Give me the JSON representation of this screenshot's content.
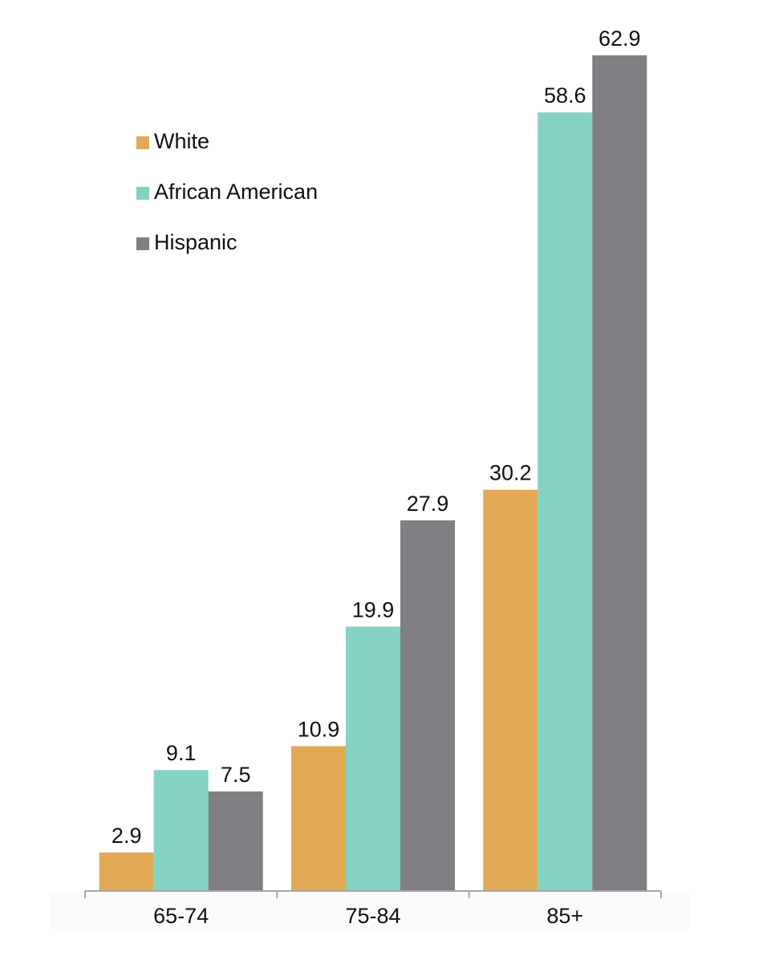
{
  "chart_data": {
    "type": "bar",
    "title": "",
    "xlabel": "",
    "ylabel": "",
    "categories": [
      "65-74",
      "75-84",
      "85+"
    ],
    "series": [
      {
        "name": "White",
        "values": [
          2.9,
          10.9,
          30.2
        ],
        "color": "#E2A955"
      },
      {
        "name": "African American",
        "values": [
          9.1,
          19.9,
          58.6
        ],
        "color": "#84D2C3"
      },
      {
        "name": "Hispanic",
        "values": [
          7.5,
          27.9,
          62.9
        ],
        "color": "#7F7F84"
      }
    ],
    "value_labels": [
      [
        "2.9",
        "10.9",
        "30.2"
      ],
      [
        "9.1",
        "19.9",
        "58.6"
      ],
      [
        "7.5",
        "27.9",
        "62.9"
      ]
    ],
    "ylim": [
      0,
      62.9
    ],
    "grid": false,
    "legend_position": "top-left"
  }
}
